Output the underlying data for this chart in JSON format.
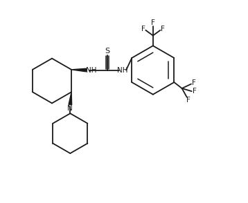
{
  "background": "#ffffff",
  "line_color": "#1a1a1a",
  "font_size": 7.5,
  "line_width": 1.3,
  "figsize": [
    3.58,
    2.94
  ],
  "dpi": 100,
  "xlim": [
    0,
    10
  ],
  "ylim": [
    0,
    8
  ]
}
